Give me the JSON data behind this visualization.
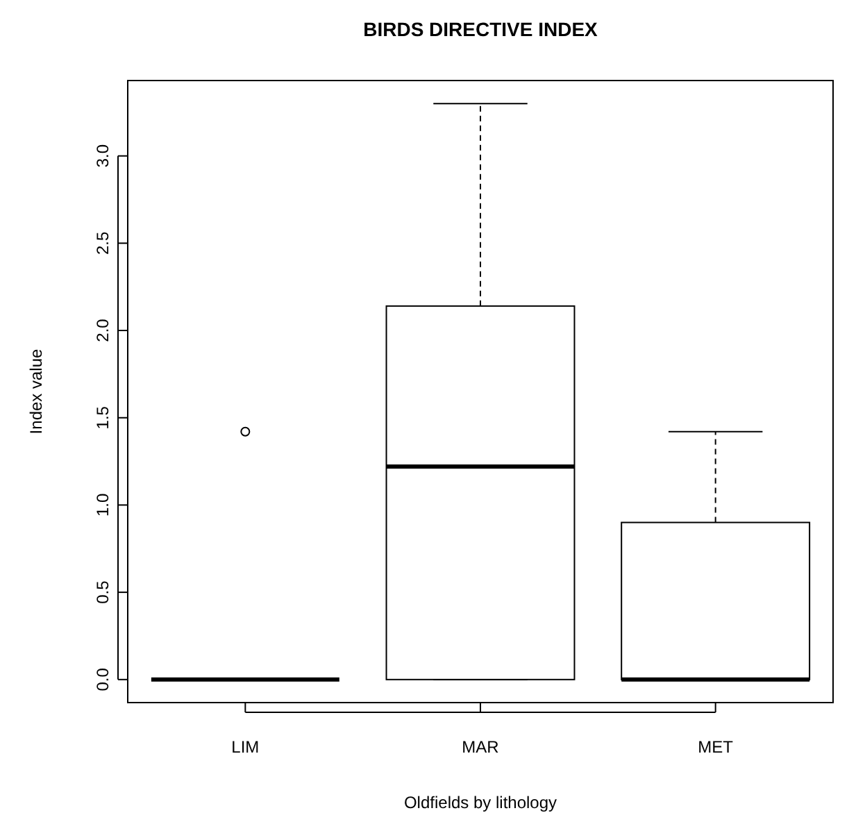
{
  "chart_data": {
    "type": "box",
    "title": "BIRDS DIRECTIVE INDEX",
    "xlabel": "Oldfields by lithology",
    "ylabel": "Index value",
    "categories": [
      "LIM",
      "MAR",
      "MET"
    ],
    "boxes": [
      {
        "low": 0,
        "q1": 0,
        "median": 0,
        "q3": 0,
        "high": 0,
        "outliers": [
          1.42
        ]
      },
      {
        "low": 0,
        "q1": 0,
        "median": 1.22,
        "q3": 2.14,
        "high": 3.3
      },
      {
        "low": 0,
        "q1": 0,
        "median": 0,
        "q3": 0.9,
        "high": 1.42
      }
    ],
    "ylim": [
      -0.132,
      3.432
    ],
    "yticks": [
      {
        "value": 0,
        "label": "0.0"
      },
      {
        "value": 0.5,
        "label": "0.5"
      },
      {
        "value": 1,
        "label": "1.0"
      },
      {
        "value": 1.5,
        "label": "1.5"
      },
      {
        "value": 2,
        "label": "2.0"
      },
      {
        "value": 2.5,
        "label": "2.5"
      },
      {
        "value": 3,
        "label": "3.0"
      }
    ]
  }
}
